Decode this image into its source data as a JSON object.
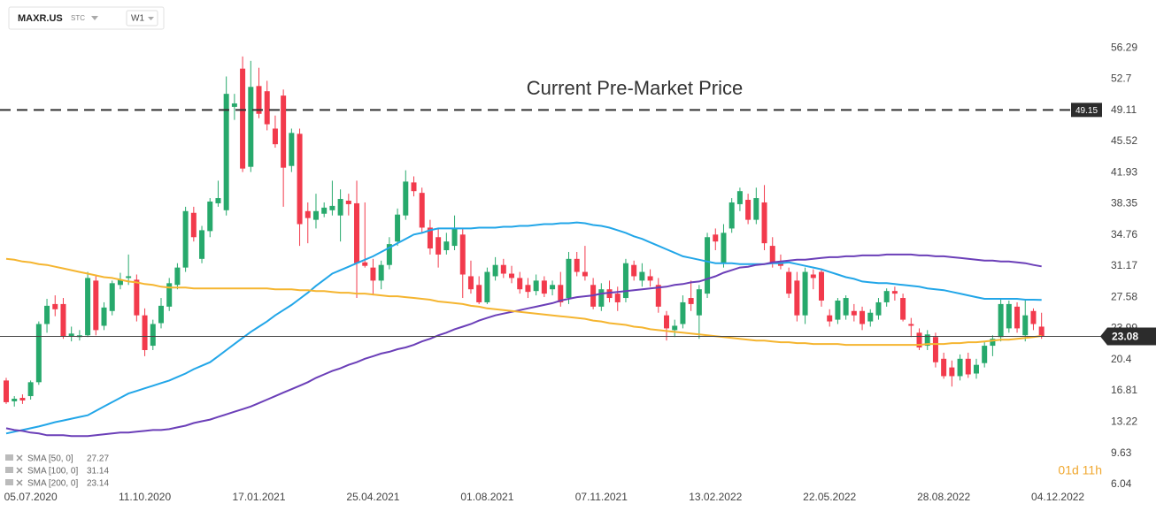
{
  "chart_data": {
    "type": "candlestick",
    "symbol": "MAXR.US",
    "exchange": "STC",
    "interval": "W1",
    "countdown": "01d 11h",
    "up_color": "#27a96c",
    "down_color": "#f23a4c",
    "grid": false,
    "ylim": [
      4.5,
      61.5
    ],
    "yticks": [
      6.04,
      9.63,
      13.22,
      16.81,
      20.4,
      23.99,
      27.58,
      31.17,
      34.76,
      38.35,
      41.93,
      45.52,
      49.11,
      52.7,
      56.29
    ],
    "hline": {
      "value": 49.15,
      "label": "Current Pre-Market Price"
    },
    "categories": [
      null,
      null,
      null,
      "05.07.2020",
      null,
      null,
      null,
      null,
      null,
      null,
      null,
      null,
      null,
      null,
      null,
      null,
      null,
      "11.10.2020",
      null,
      null,
      null,
      null,
      null,
      null,
      null,
      null,
      null,
      null,
      null,
      null,
      null,
      "17.01.2021",
      null,
      null,
      null,
      null,
      null,
      null,
      null,
      null,
      null,
      null,
      null,
      null,
      null,
      "25.04.2021",
      null,
      null,
      null,
      null,
      null,
      null,
      null,
      null,
      null,
      null,
      null,
      null,
      null,
      "01.08.2021",
      null,
      null,
      null,
      null,
      null,
      null,
      null,
      null,
      null,
      null,
      null,
      null,
      null,
      "07.11.2021",
      null,
      null,
      null,
      null,
      null,
      null,
      null,
      null,
      null,
      null,
      null,
      null,
      null,
      "13.02.2022",
      null,
      null,
      null,
      null,
      null,
      null,
      null,
      null,
      null,
      null,
      null,
      null,
      null,
      "22.05.2022",
      null,
      null,
      null,
      null,
      null,
      null,
      null,
      null,
      null,
      null,
      null,
      null,
      null,
      "28.08.2022",
      null,
      null,
      null,
      null,
      null,
      null,
      null,
      null,
      null,
      null,
      null,
      null,
      null,
      "04.12.2022"
    ],
    "open": [
      18.0,
      15.6,
      16.0,
      16.2,
      17.8,
      24.5,
      26.8,
      26.8,
      23.1,
      23.0,
      23.2,
      29.5,
      24.3,
      26.0,
      29.0,
      29.8,
      29.6,
      25.5,
      22.0,
      24.6,
      26.5,
      29.0,
      31.0,
      37.3,
      32.0,
      35.2,
      38.4,
      37.6,
      49.5,
      53.9,
      42.6,
      51.9,
      51.3,
      47.0,
      50.8,
      42.7,
      46.4,
      37.5,
      36.5,
      37.2,
      37.6,
      37.0,
      38.7,
      38.4,
      31.6,
      31.0,
      29.5,
      31.3,
      34.0,
      37.0,
      40.8,
      39.6,
      35.6,
      34.5,
      33.0,
      33.5,
      34.8,
      30.0,
      29.0,
      27.0,
      30.0,
      31.3,
      30.3,
      29.8,
      29.0,
      28.3,
      29.5,
      28.5,
      29.0,
      27.5,
      32.0,
      30.5,
      29.0,
      26.5,
      28.5,
      28.0,
      27.5,
      31.3,
      29.5,
      30.0,
      29.0,
      25.5,
      23.8,
      24.5,
      27.5,
      25.5,
      28.0,
      34.8,
      31.5,
      35.5,
      38.3,
      38.8,
      36.5,
      38.5,
      33.5,
      31.5,
      30.5,
      29.5,
      25.5,
      30.2,
      30.5,
      25.5,
      25.0,
      25.5,
      26.0,
      26.0,
      24.8,
      25.5,
      27.0,
      28.3,
      27.5,
      24.5,
      23.5,
      22.0,
      23.0,
      20.5,
      19.5,
      18.5,
      20.5,
      18.8,
      20.0,
      22.0,
      23.0,
      24.0,
      26.5,
      23.2,
      26.0,
      24.2,
      null,
      null
    ],
    "high": [
      18.3,
      16.2,
      16.4,
      18.0,
      24.8,
      27.4,
      27.8,
      27.5,
      24.2,
      23.8,
      30.5,
      30.2,
      27.0,
      29.5,
      30.4,
      32.5,
      30.2,
      26.3,
      25.0,
      27.5,
      29.8,
      31.5,
      38.0,
      38.0,
      35.8,
      39.0,
      41.0,
      53.0,
      51.0,
      55.3,
      54.8,
      54.0,
      52.5,
      48.5,
      51.5,
      47.0,
      47.0,
      38.5,
      39.5,
      38.5,
      41.0,
      40.0,
      39.5,
      41.0,
      38.5,
      32.0,
      31.8,
      34.5,
      37.8,
      42.2,
      41.5,
      40.2,
      36.5,
      35.5,
      35.0,
      37.0,
      35.5,
      31.8,
      30.0,
      31.0,
      32.2,
      32.0,
      31.2,
      30.5,
      29.8,
      30.2,
      30.0,
      29.5,
      30.5,
      32.8,
      32.8,
      33.5,
      29.8,
      29.2,
      29.5,
      28.8,
      32.0,
      31.8,
      31.5,
      30.8,
      29.8,
      26.0,
      25.0,
      27.8,
      29.5,
      29.0,
      35.0,
      35.5,
      36.0,
      39.0,
      40.2,
      39.5,
      40.2,
      40.5,
      34.5,
      32.5,
      31.0,
      30.5,
      31.0,
      30.8,
      30.8,
      26.2,
      27.5,
      27.8,
      26.8,
      26.5,
      26.2,
      27.5,
      28.6,
      28.8,
      28.0,
      25.2,
      24.0,
      23.8,
      23.5,
      21.2,
      20.3,
      21.0,
      21.2,
      20.5,
      22.5,
      23.2,
      27.3,
      27.2,
      27.0,
      27.2,
      26.3,
      25.8,
      null,
      null
    ],
    "low": [
      15.3,
      15.0,
      15.3,
      15.8,
      17.5,
      23.5,
      25.4,
      22.8,
      22.5,
      22.6,
      23.0,
      23.2,
      23.8,
      25.5,
      28.5,
      29.0,
      24.8,
      20.8,
      21.5,
      24.0,
      26.0,
      28.5,
      30.5,
      34.0,
      31.5,
      34.5,
      38.0,
      37.0,
      48.0,
      42.0,
      42.0,
      48.2,
      46.8,
      44.8,
      38.0,
      42.0,
      33.5,
      33.8,
      35.5,
      36.8,
      37.0,
      34.0,
      37.0,
      27.5,
      31.0,
      27.8,
      28.5,
      30.8,
      33.5,
      36.5,
      39.2,
      35.0,
      32.5,
      31.0,
      32.5,
      33.0,
      27.5,
      28.0,
      26.8,
      26.8,
      29.5,
      29.8,
      29.2,
      28.0,
      27.5,
      27.8,
      27.6,
      27.8,
      26.5,
      26.8,
      30.0,
      29.5,
      26.2,
      26.0,
      27.0,
      26.0,
      27.0,
      29.5,
      28.8,
      28.8,
      25.8,
      22.6,
      23.0,
      24.0,
      26.0,
      22.8,
      27.5,
      33.0,
      31.0,
      35.0,
      37.5,
      36.0,
      36.0,
      33.0,
      31.0,
      30.8,
      27.5,
      24.8,
      24.5,
      28.5,
      26.5,
      24.2,
      24.5,
      25.0,
      24.8,
      23.8,
      24.2,
      25.0,
      26.5,
      27.2,
      24.8,
      23.0,
      21.5,
      21.5,
      19.5,
      18.2,
      17.3,
      18.0,
      18.3,
      18.2,
      19.5,
      20.8,
      22.5,
      23.5,
      23.5,
      22.5,
      23.8,
      22.8,
      null,
      null
    ],
    "close": [
      15.5,
      15.9,
      15.7,
      17.8,
      24.5,
      26.6,
      26.2,
      23.1,
      23.4,
      23.2,
      29.8,
      23.8,
      26.4,
      29.2,
      29.6,
      30.0,
      25.5,
      21.5,
      24.5,
      26.6,
      29.2,
      31.0,
      37.5,
      34.5,
      35.3,
      38.6,
      39.0,
      51.0,
      49.9,
      42.4,
      51.8,
      48.7,
      47.5,
      45.2,
      42.5,
      46.5,
      36.0,
      36.7,
      37.5,
      37.9,
      38.1,
      38.9,
      38.3,
      31.5,
      31.2,
      29.5,
      31.3,
      33.7,
      37.1,
      40.9,
      39.8,
      35.6,
      33.2,
      32.5,
      34.0,
      35.5,
      30.2,
      28.5,
      27.0,
      30.5,
      31.3,
      30.3,
      29.8,
      28.5,
      28.2,
      29.5,
      28.0,
      29.0,
      27.0,
      32.0,
      30.5,
      30.0,
      26.5,
      28.5,
      27.5,
      27.0,
      31.5,
      30.0,
      30.5,
      29.5,
      26.5,
      24.0,
      24.3,
      27.0,
      26.8,
      28.5,
      34.5,
      34.0,
      35.0,
      38.5,
      39.8,
      36.5,
      39.0,
      33.8,
      31.5,
      31.2,
      28.0,
      25.5,
      30.5,
      29.8,
      27.2,
      24.8,
      27.2,
      27.5,
      25.5,
      24.5,
      25.8,
      27.0,
      28.3,
      28.0,
      25.0,
      24.3,
      21.8,
      23.3,
      20.1,
      18.5,
      18.5,
      20.5,
      18.7,
      19.8,
      22.0,
      22.8,
      26.8,
      26.8,
      24.0,
      25.5,
      24.5,
      23.08,
      null,
      null
    ],
    "series": [
      {
        "name": "SMA [50, 0]",
        "color": "#22a6e8",
        "values": [
          11.9,
          12.1,
          12.3,
          12.5,
          12.7,
          12.95,
          13.2,
          13.4,
          13.6,
          13.8,
          14.0,
          14.5,
          15.0,
          15.5,
          16.0,
          16.5,
          16.8,
          17.1,
          17.4,
          17.7,
          18.0,
          18.4,
          18.8,
          19.3,
          19.7,
          20.1,
          20.8,
          21.5,
          22.2,
          22.9,
          23.6,
          24.2,
          24.8,
          25.5,
          26.1,
          26.7,
          27.4,
          28.1,
          28.9,
          29.6,
          30.3,
          30.7,
          31.1,
          31.5,
          31.9,
          32.3,
          32.8,
          33.3,
          33.8,
          34.3,
          34.8,
          35.0,
          35.3,
          35.5,
          35.5,
          35.5,
          35.5,
          35.5,
          35.6,
          35.6,
          35.6,
          35.7,
          35.7,
          35.8,
          35.8,
          35.9,
          36.0,
          36.0,
          36.1,
          36.1,
          36.2,
          36.1,
          35.9,
          35.8,
          35.6,
          35.3,
          35.0,
          34.6,
          34.3,
          33.9,
          33.5,
          33.1,
          32.7,
          32.3,
          32.1,
          31.9,
          31.7,
          31.5,
          31.5,
          31.5,
          31.4,
          31.4,
          31.4,
          31.4,
          31.5,
          31.5,
          31.6,
          31.4,
          31.2,
          31.0,
          30.8,
          30.5,
          30.2,
          29.9,
          29.7,
          29.4,
          29.3,
          29.2,
          29.2,
          29.1,
          29.0,
          28.9,
          28.8,
          28.6,
          28.5,
          28.4,
          28.2,
          28.0,
          27.8,
          27.6,
          27.4,
          27.4,
          27.4,
          27.4,
          27.4,
          27.3,
          27.3,
          27.27,
          null,
          null
        ]
      },
      {
        "name": "SMA [100, 0]",
        "color": "#6b3fb8",
        "values": [
          12.5,
          12.3,
          12.2,
          12.0,
          11.9,
          11.7,
          11.7,
          11.7,
          11.6,
          11.6,
          11.6,
          11.7,
          11.8,
          11.9,
          12.0,
          12.0,
          12.1,
          12.2,
          12.3,
          12.3,
          12.4,
          12.6,
          12.8,
          13.1,
          13.3,
          13.5,
          13.8,
          14.1,
          14.4,
          14.7,
          15.0,
          15.4,
          15.8,
          16.2,
          16.6,
          17.0,
          17.4,
          17.8,
          18.3,
          18.7,
          19.1,
          19.4,
          19.8,
          20.1,
          20.5,
          20.8,
          21.1,
          21.3,
          21.6,
          21.8,
          22.1,
          22.5,
          22.8,
          23.2,
          23.5,
          23.9,
          24.2,
          24.5,
          24.9,
          25.2,
          25.5,
          25.7,
          25.9,
          26.1,
          26.3,
          26.5,
          26.7,
          26.9,
          27.2,
          27.4,
          27.6,
          27.7,
          27.8,
          28.0,
          28.1,
          28.2,
          28.3,
          28.4,
          28.5,
          28.6,
          28.7,
          28.8,
          29.0,
          29.1,
          29.3,
          29.4,
          29.7,
          30.0,
          30.4,
          30.7,
          31.0,
          31.1,
          31.3,
          31.4,
          31.6,
          31.7,
          31.8,
          31.9,
          31.9,
          32.0,
          32.1,
          32.2,
          32.2,
          32.3,
          32.3,
          32.4,
          32.4,
          32.4,
          32.5,
          32.5,
          32.5,
          32.5,
          32.4,
          32.4,
          32.3,
          32.3,
          32.2,
          32.1,
          32.0,
          31.9,
          31.8,
          31.8,
          31.7,
          31.7,
          31.6,
          31.5,
          31.3,
          31.14,
          null,
          null
        ]
      },
      {
        "name": "SMA [200, 0]",
        "color": "#f5b530",
        "values": [
          32.0,
          31.9,
          31.7,
          31.6,
          31.4,
          31.3,
          31.1,
          30.9,
          30.7,
          30.5,
          30.3,
          30.1,
          29.9,
          29.8,
          29.6,
          29.4,
          29.3,
          29.1,
          29.0,
          28.8,
          28.7,
          28.7,
          28.7,
          28.6,
          28.6,
          28.6,
          28.6,
          28.6,
          28.6,
          28.6,
          28.6,
          28.6,
          28.6,
          28.5,
          28.5,
          28.5,
          28.4,
          28.4,
          28.3,
          28.3,
          28.2,
          28.1,
          28.1,
          28.0,
          28.0,
          27.9,
          27.8,
          27.7,
          27.7,
          27.6,
          27.5,
          27.4,
          27.3,
          27.1,
          27.0,
          26.9,
          26.8,
          26.6,
          26.5,
          26.3,
          26.2,
          26.1,
          26.0,
          25.9,
          25.8,
          25.7,
          25.6,
          25.5,
          25.4,
          25.3,
          25.2,
          25.1,
          24.9,
          24.8,
          24.6,
          24.5,
          24.4,
          24.2,
          24.1,
          23.9,
          23.8,
          23.7,
          23.6,
          23.5,
          23.4,
          23.3,
          23.2,
          23.1,
          23.0,
          22.9,
          22.8,
          22.7,
          22.6,
          22.6,
          22.5,
          22.4,
          22.4,
          22.3,
          22.3,
          22.2,
          22.2,
          22.2,
          22.2,
          22.1,
          22.1,
          22.1,
          22.1,
          22.1,
          22.1,
          22.1,
          22.1,
          22.1,
          22.1,
          22.2,
          22.2,
          22.2,
          22.3,
          22.3,
          22.4,
          22.4,
          22.5,
          22.6,
          22.7,
          22.7,
          22.8,
          22.9,
          23.0,
          23.14,
          null,
          null
        ]
      }
    ]
  }
}
